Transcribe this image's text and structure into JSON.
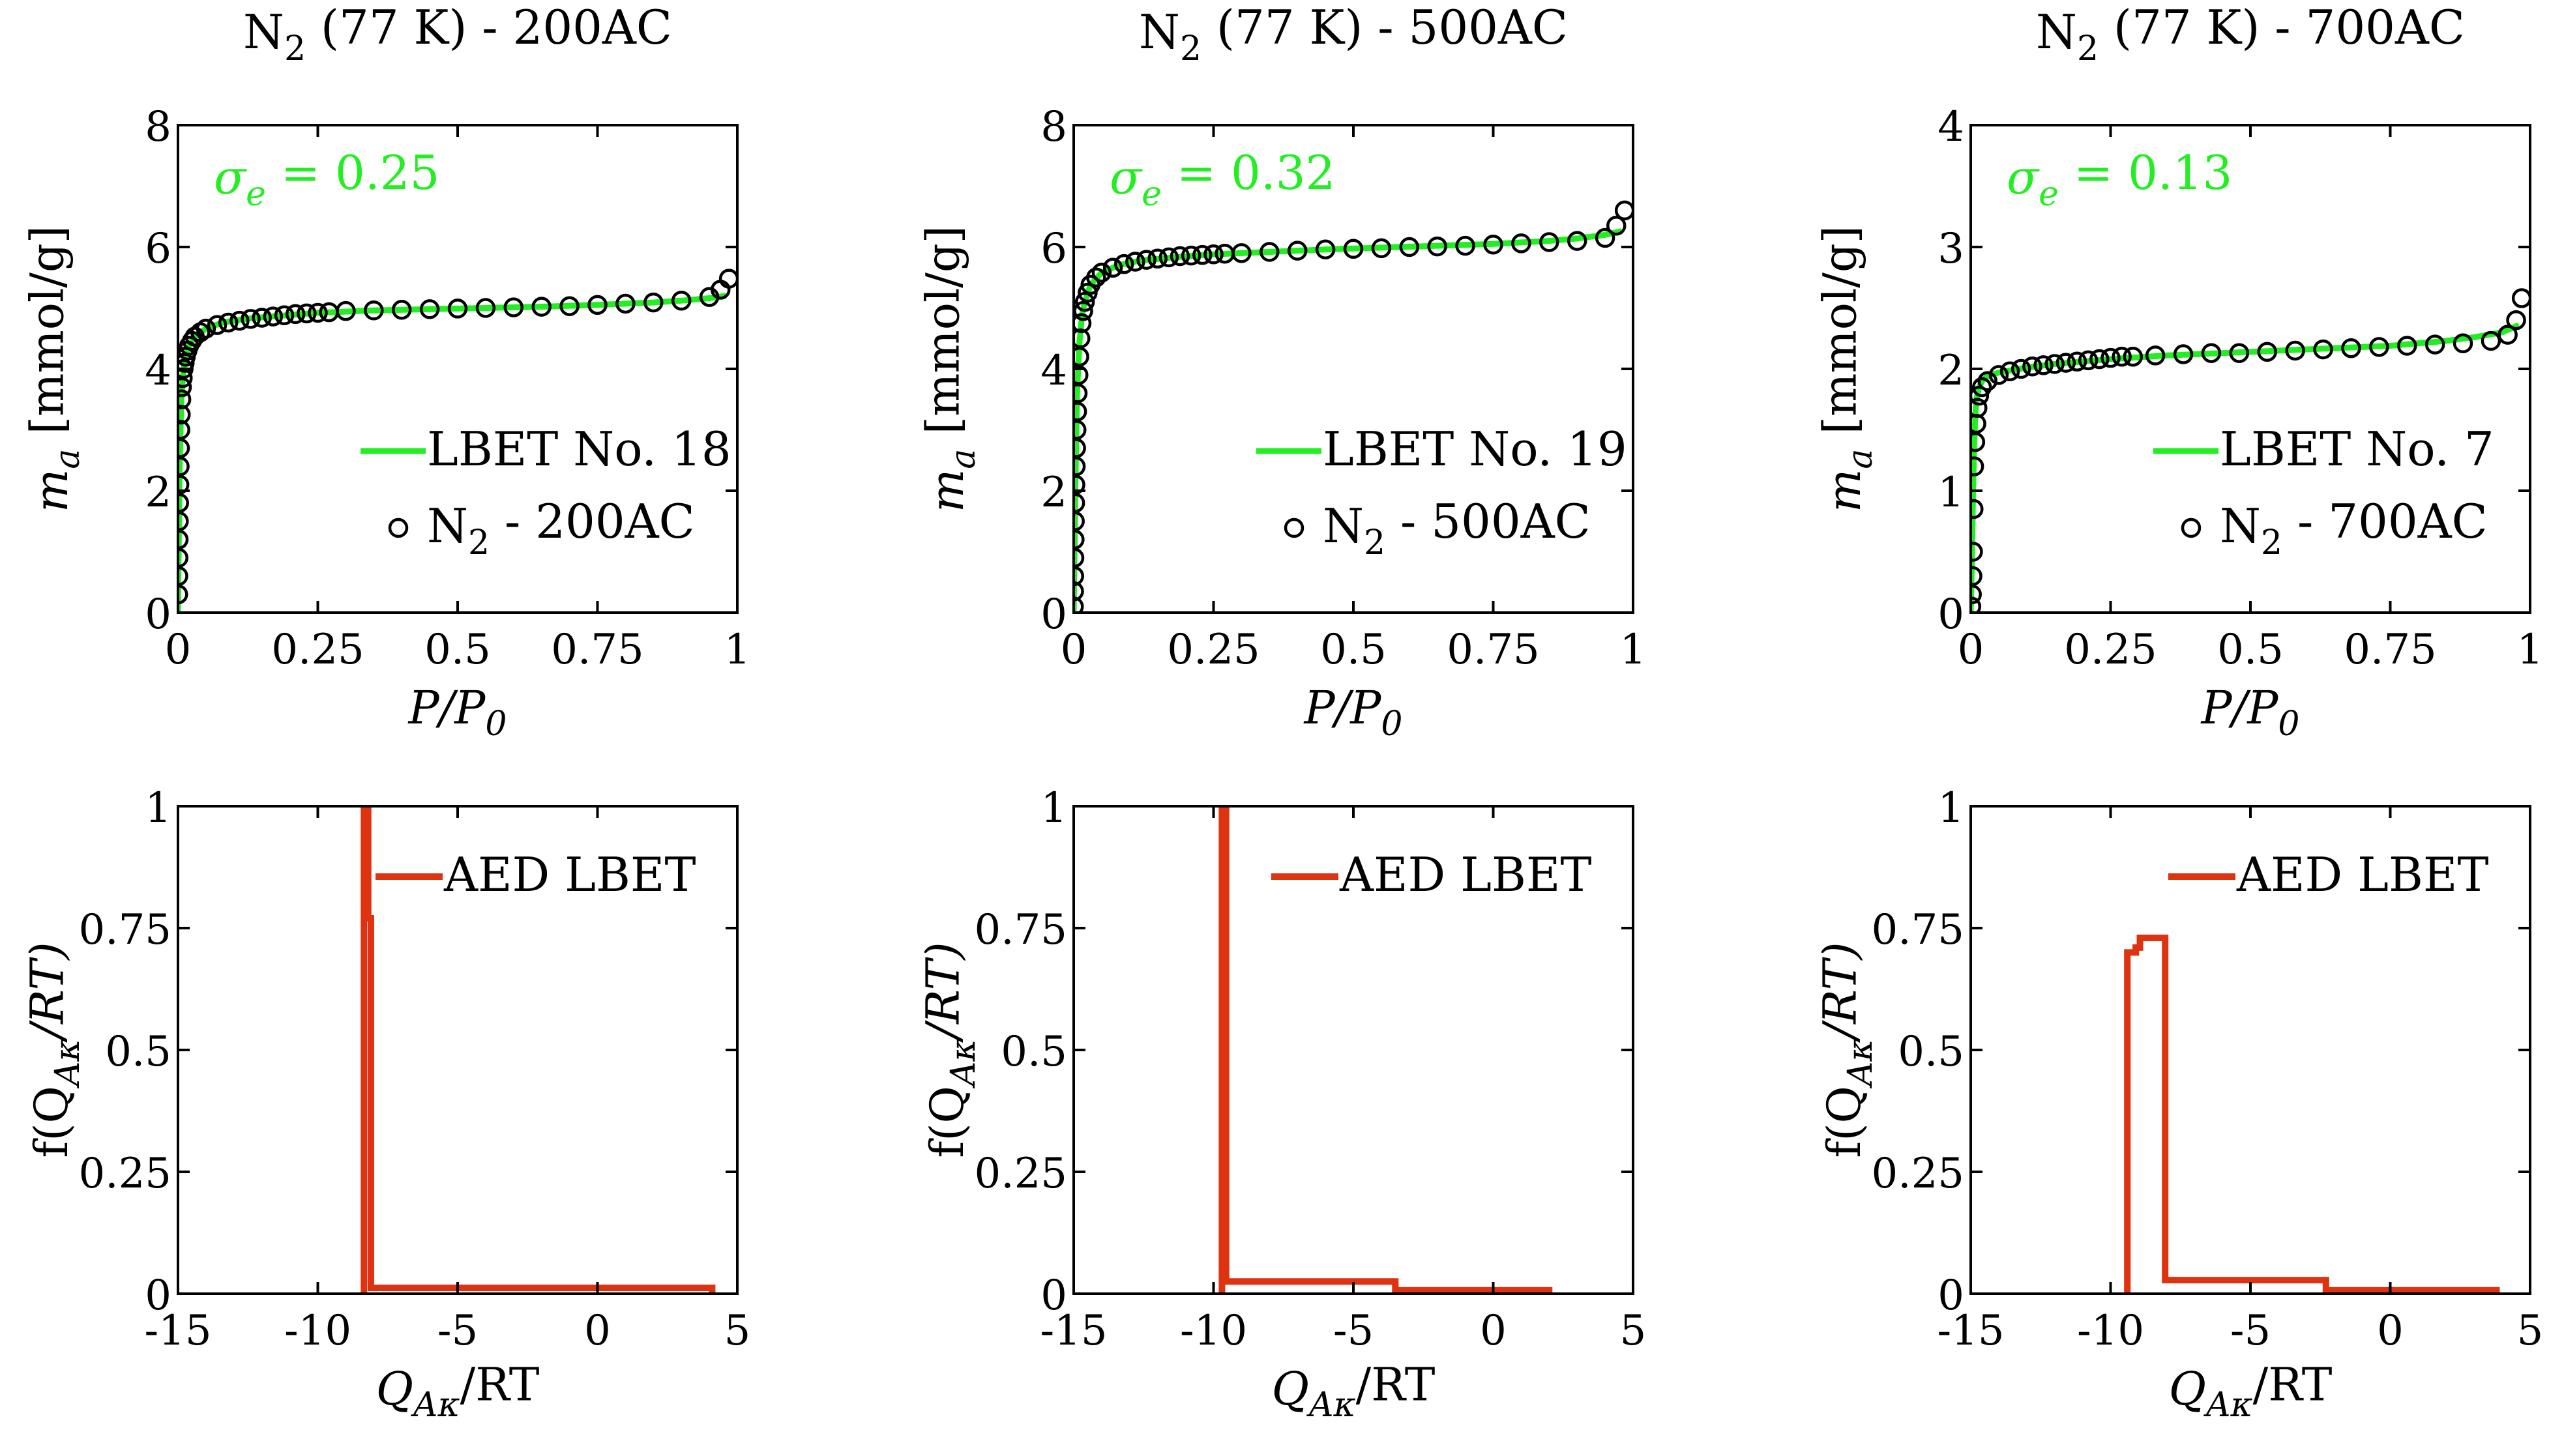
{
  "colors": {
    "lbet_fit": "#22ee22",
    "aed": "#dd3311",
    "marker": "#000000",
    "axes": "#000000"
  },
  "chart_data": [
    {
      "type": "scatter",
      "title": "N2 (77 K) - 200AC",
      "title_parts": {
        "species": "N",
        "subscript": "2",
        "rest": " (77 K) - 200AC"
      },
      "xlabel": "P/P0",
      "xlabel_parts": {
        "main": "P/P",
        "sub": "0"
      },
      "ylabel": "m_a [mmol/g]",
      "ylabel_parts": {
        "main": "m",
        "sub": "a",
        "rest": " [mmol/g]"
      },
      "xlim": [
        0,
        1
      ],
      "ylim": [
        0,
        8
      ],
      "xticks": [
        0,
        0.25,
        0.5,
        0.75,
        1
      ],
      "xtick_labels": [
        "0",
        "0.25",
        "0.5",
        "0.75",
        "1"
      ],
      "yticks": [
        0,
        2,
        4,
        6,
        8
      ],
      "ytick_labels": [
        "0",
        "2",
        "4",
        "6",
        "8"
      ],
      "annotation": {
        "main": "σ",
        "sub": "e",
        "rest": " = 0.25"
      },
      "legend": [
        {
          "label": "LBET No. 18",
          "style": "line"
        },
        {
          "label": "N2 - 200AC",
          "parts": {
            "main": "N",
            "sub": "2",
            "rest": " - 200AC"
          },
          "style": "marker"
        }
      ],
      "series": [
        {
          "name": "N2 - 200AC",
          "kind": "markers",
          "x": [
            0.0003,
            0.0006,
            0.0009,
            0.0012,
            0.0016,
            0.002,
            0.0025,
            0.003,
            0.0036,
            0.0043,
            0.005,
            0.006,
            0.007,
            0.0085,
            0.01,
            0.012,
            0.014,
            0.017,
            0.02,
            0.025,
            0.03,
            0.04,
            0.05,
            0.07,
            0.09,
            0.11,
            0.13,
            0.15,
            0.17,
            0.19,
            0.21,
            0.23,
            0.25,
            0.27,
            0.3,
            0.35,
            0.4,
            0.45,
            0.5,
            0.55,
            0.6,
            0.65,
            0.7,
            0.75,
            0.8,
            0.85,
            0.9,
            0.95,
            0.97,
            0.985
          ],
          "y": [
            0.3,
            0.6,
            0.9,
            1.2,
            1.5,
            1.8,
            2.1,
            2.4,
            2.7,
            3.0,
            3.25,
            3.5,
            3.7,
            3.85,
            4.0,
            4.1,
            4.2,
            4.3,
            4.38,
            4.46,
            4.53,
            4.6,
            4.66,
            4.72,
            4.76,
            4.79,
            4.82,
            4.84,
            4.86,
            4.88,
            4.9,
            4.91,
            4.92,
            4.93,
            4.95,
            4.96,
            4.97,
            4.98,
            4.99,
            5.0,
            5.01,
            5.02,
            5.03,
            5.05,
            5.07,
            5.09,
            5.12,
            5.18,
            5.3,
            5.48
          ]
        },
        {
          "name": "LBET No. 18",
          "kind": "line",
          "x": [
            0,
            0.003,
            0.006,
            0.01,
            0.015,
            0.02,
            0.03,
            0.05,
            0.08,
            0.12,
            0.18,
            0.25,
            0.35,
            0.45,
            0.55,
            0.65,
            0.75,
            0.85,
            0.9,
            0.95,
            0.98
          ],
          "y": [
            0,
            2.4,
            3.5,
            4.0,
            4.25,
            4.38,
            4.53,
            4.66,
            4.76,
            4.82,
            4.87,
            4.92,
            4.96,
            4.98,
            5.0,
            5.02,
            5.05,
            5.09,
            5.12,
            5.16,
            5.2
          ]
        }
      ]
    },
    {
      "type": "scatter",
      "title": "N2 (77 K) - 500AC",
      "title_parts": {
        "species": "N",
        "subscript": "2",
        "rest": " (77 K) - 500AC"
      },
      "xlabel": "P/P0",
      "xlabel_parts": {
        "main": "P/P",
        "sub": "0"
      },
      "ylabel": "m_a [mmol/g]",
      "ylabel_parts": {
        "main": "m",
        "sub": "a",
        "rest": " [mmol/g]"
      },
      "xlim": [
        0,
        1
      ],
      "ylim": [
        0,
        8
      ],
      "xticks": [
        0,
        0.25,
        0.5,
        0.75,
        1
      ],
      "xtick_labels": [
        "0",
        "0.25",
        "0.5",
        "0.75",
        "1"
      ],
      "yticks": [
        0,
        2,
        4,
        6,
        8
      ],
      "ytick_labels": [
        "0",
        "2",
        "4",
        "6",
        "8"
      ],
      "annotation": {
        "main": "σ",
        "sub": "e",
        "rest": " = 0.32"
      },
      "legend": [
        {
          "label": "LBET No. 19",
          "style": "line"
        },
        {
          "label": "N2 - 500AC",
          "parts": {
            "main": "N",
            "sub": "2",
            "rest": " - 500AC"
          },
          "style": "marker"
        }
      ],
      "series": [
        {
          "name": "N2 - 500AC",
          "kind": "markers",
          "x": [
            0.0003,
            0.0006,
            0.0009,
            0.0012,
            0.0016,
            0.002,
            0.0025,
            0.003,
            0.0036,
            0.0043,
            0.005,
            0.006,
            0.007,
            0.0085,
            0.01,
            0.012,
            0.014,
            0.017,
            0.02,
            0.025,
            0.03,
            0.04,
            0.05,
            0.07,
            0.09,
            0.11,
            0.13,
            0.15,
            0.17,
            0.19,
            0.21,
            0.23,
            0.25,
            0.27,
            0.3,
            0.35,
            0.4,
            0.45,
            0.5,
            0.55,
            0.6,
            0.65,
            0.7,
            0.75,
            0.8,
            0.85,
            0.9,
            0.95,
            0.97,
            0.985
          ],
          "y": [
            0.1,
            0.35,
            0.6,
            0.9,
            1.2,
            1.5,
            1.8,
            2.1,
            2.4,
            2.7,
            3.0,
            3.3,
            3.6,
            3.9,
            4.2,
            4.5,
            4.75,
            4.95,
            5.1,
            5.25,
            5.38,
            5.5,
            5.58,
            5.66,
            5.72,
            5.76,
            5.79,
            5.81,
            5.83,
            5.85,
            5.86,
            5.87,
            5.88,
            5.89,
            5.9,
            5.92,
            5.94,
            5.96,
            5.97,
            5.98,
            6.0,
            6.01,
            6.02,
            6.04,
            6.06,
            6.08,
            6.1,
            6.15,
            6.35,
            6.6
          ]
        },
        {
          "name": "LBET No. 19",
          "kind": "line",
          "x": [
            0,
            0.003,
            0.006,
            0.01,
            0.015,
            0.02,
            0.03,
            0.05,
            0.08,
            0.12,
            0.18,
            0.25,
            0.35,
            0.45,
            0.55,
            0.65,
            0.75,
            0.85,
            0.9,
            0.95,
            0.98
          ],
          "y": [
            0,
            2.1,
            3.6,
            4.4,
            4.9,
            5.1,
            5.38,
            5.58,
            5.7,
            5.78,
            5.83,
            5.88,
            5.92,
            5.96,
            5.99,
            6.02,
            6.05,
            6.1,
            6.14,
            6.2,
            6.26
          ]
        }
      ]
    },
    {
      "type": "scatter",
      "title": "N2 (77 K) - 700AC",
      "title_parts": {
        "species": "N",
        "subscript": "2",
        "rest": " (77 K) - 700AC"
      },
      "xlabel": "P/P0",
      "xlabel_parts": {
        "main": "P/P",
        "sub": "0"
      },
      "ylabel": "m_a [mmol/g]",
      "ylabel_parts": {
        "main": "m",
        "sub": "a",
        "rest": " [mmol/g]"
      },
      "xlim": [
        0,
        1
      ],
      "ylim": [
        0,
        4
      ],
      "xticks": [
        0,
        0.25,
        0.5,
        0.75,
        1
      ],
      "xtick_labels": [
        "0",
        "0.25",
        "0.5",
        "0.75",
        "1"
      ],
      "yticks": [
        0,
        1,
        2,
        3,
        4
      ],
      "ytick_labels": [
        "0",
        "1",
        "2",
        "3",
        "4"
      ],
      "annotation": {
        "main": "σ",
        "sub": "e",
        "rest": " = 0.13"
      },
      "legend": [
        {
          "label": "LBET No. 7",
          "style": "line"
        },
        {
          "label": "N2 - 700AC",
          "parts": {
            "main": "N",
            "sub": "2",
            "rest": " - 700AC"
          },
          "style": "marker"
        }
      ],
      "series": [
        {
          "name": "N2 - 700AC",
          "kind": "markers",
          "x": [
            0.001,
            0.002,
            0.003,
            0.004,
            0.005,
            0.006,
            0.008,
            0.01,
            0.012,
            0.015,
            0.02,
            0.03,
            0.05,
            0.07,
            0.09,
            0.11,
            0.13,
            0.15,
            0.17,
            0.19,
            0.21,
            0.23,
            0.25,
            0.27,
            0.29,
            0.33,
            0.38,
            0.43,
            0.48,
            0.53,
            0.58,
            0.63,
            0.68,
            0.73,
            0.78,
            0.83,
            0.88,
            0.93,
            0.96,
            0.975,
            0.985
          ],
          "y": [
            0.05,
            0.15,
            0.3,
            0.5,
            0.85,
            1.2,
            1.4,
            1.55,
            1.68,
            1.78,
            1.85,
            1.9,
            1.95,
            1.98,
            2.0,
            2.02,
            2.03,
            2.04,
            2.05,
            2.06,
            2.07,
            2.08,
            2.09,
            2.1,
            2.1,
            2.11,
            2.12,
            2.13,
            2.13,
            2.14,
            2.15,
            2.16,
            2.17,
            2.18,
            2.19,
            2.2,
            2.21,
            2.23,
            2.28,
            2.4,
            2.58
          ]
        },
        {
          "name": "LBET No. 7",
          "kind": "line",
          "x": [
            0,
            0.002,
            0.004,
            0.006,
            0.008,
            0.01,
            0.015,
            0.02,
            0.03,
            0.05,
            0.1,
            0.15,
            0.2,
            0.25,
            0.35,
            0.45,
            0.55,
            0.65,
            0.75,
            0.85,
            0.9,
            0.95,
            0.98
          ],
          "y": [
            0,
            0.4,
            0.95,
            1.35,
            1.6,
            1.75,
            1.85,
            1.9,
            1.94,
            1.97,
            2.01,
            2.04,
            2.06,
            2.08,
            2.11,
            2.13,
            2.15,
            2.17,
            2.19,
            2.23,
            2.26,
            2.3,
            2.36
          ]
        }
      ]
    },
    {
      "type": "line",
      "xlabel": "Q_Aκ/RT",
      "xlabel_parts": {
        "main": "Q",
        "sub": "Aκ",
        "rest": "/RT"
      },
      "ylabel": "f(Q_Aκ/RT)",
      "ylabel_parts": {
        "main": "f(Q",
        "sub": "Aκ",
        "rest": "/RT)"
      },
      "xlim": [
        -15,
        5
      ],
      "ylim": [
        0,
        1
      ],
      "xticks": [
        -15,
        -10,
        -5,
        0,
        5
      ],
      "xtick_labels": [
        "-15",
        "-10",
        "-5",
        "0",
        "5"
      ],
      "yticks": [
        0,
        0.25,
        0.5,
        0.75,
        1
      ],
      "ytick_labels": [
        "0",
        "0.25",
        "0.5",
        "0.75",
        "1"
      ],
      "legend": [
        {
          "label": "AED LBET",
          "style": "line"
        }
      ],
      "series": [
        {
          "name": "AED LBET",
          "x": [
            -8.35,
            -8.35,
            -8.2,
            -8.2,
            -8.1,
            -8.1,
            4.1,
            4.1
          ],
          "y": [
            0,
            1.0,
            1.0,
            0.77,
            0.77,
            0.012,
            0.012,
            0
          ]
        }
      ]
    },
    {
      "type": "line",
      "xlabel": "Q_Aκ/RT",
      "xlabel_parts": {
        "main": "Q",
        "sub": "Aκ",
        "rest": "/RT"
      },
      "ylabel": "f(Q_Aκ/RT)",
      "ylabel_parts": {
        "main": "f(Q",
        "sub": "Aκ",
        "rest": "/RT)"
      },
      "xlim": [
        -15,
        5
      ],
      "ylim": [
        0,
        1
      ],
      "xticks": [
        -15,
        -10,
        -5,
        0,
        5
      ],
      "xtick_labels": [
        "-15",
        "-10",
        "-5",
        "0",
        "5"
      ],
      "yticks": [
        0,
        0.25,
        0.5,
        0.75,
        1
      ],
      "ytick_labels": [
        "0",
        "0.25",
        "0.5",
        "0.75",
        "1"
      ],
      "legend": [
        {
          "label": "AED LBET",
          "style": "line"
        }
      ],
      "series": [
        {
          "name": "AED LBET",
          "x": [
            -9.7,
            -9.7,
            -9.55,
            -9.55,
            -3.5,
            -3.5,
            2.0,
            2.0
          ],
          "y": [
            0,
            1.0,
            1.0,
            0.025,
            0.025,
            0.007,
            0.007,
            0
          ]
        }
      ]
    },
    {
      "type": "line",
      "xlabel": "Q_Aκ/RT",
      "xlabel_parts": {
        "main": "Q",
        "sub": "Aκ",
        "rest": "/RT"
      },
      "ylabel": "f(Q_Aκ/RT)",
      "ylabel_parts": {
        "main": "f(Q",
        "sub": "Aκ",
        "rest": "/RT)"
      },
      "xlim": [
        -15,
        5
      ],
      "ylim": [
        0,
        1
      ],
      "xticks": [
        -15,
        -10,
        -5,
        0,
        5
      ],
      "xtick_labels": [
        "-15",
        "-10",
        "-5",
        "0",
        "5"
      ],
      "yticks": [
        0,
        0.25,
        0.5,
        0.75,
        1
      ],
      "ytick_labels": [
        "0",
        "0.25",
        "0.5",
        "0.75",
        "1"
      ],
      "legend": [
        {
          "label": "AED LBET",
          "style": "line"
        }
      ],
      "series": [
        {
          "name": "AED LBET",
          "x": [
            -9.4,
            -9.4,
            -9.1,
            -9.1,
            -8.95,
            -8.95,
            -8.05,
            -8.05,
            -2.3,
            -2.3,
            3.8,
            3.8
          ],
          "y": [
            0,
            0.7,
            0.7,
            0.71,
            0.71,
            0.73,
            0.73,
            0.028,
            0.028,
            0.007,
            0.007,
            0
          ]
        }
      ]
    }
  ]
}
